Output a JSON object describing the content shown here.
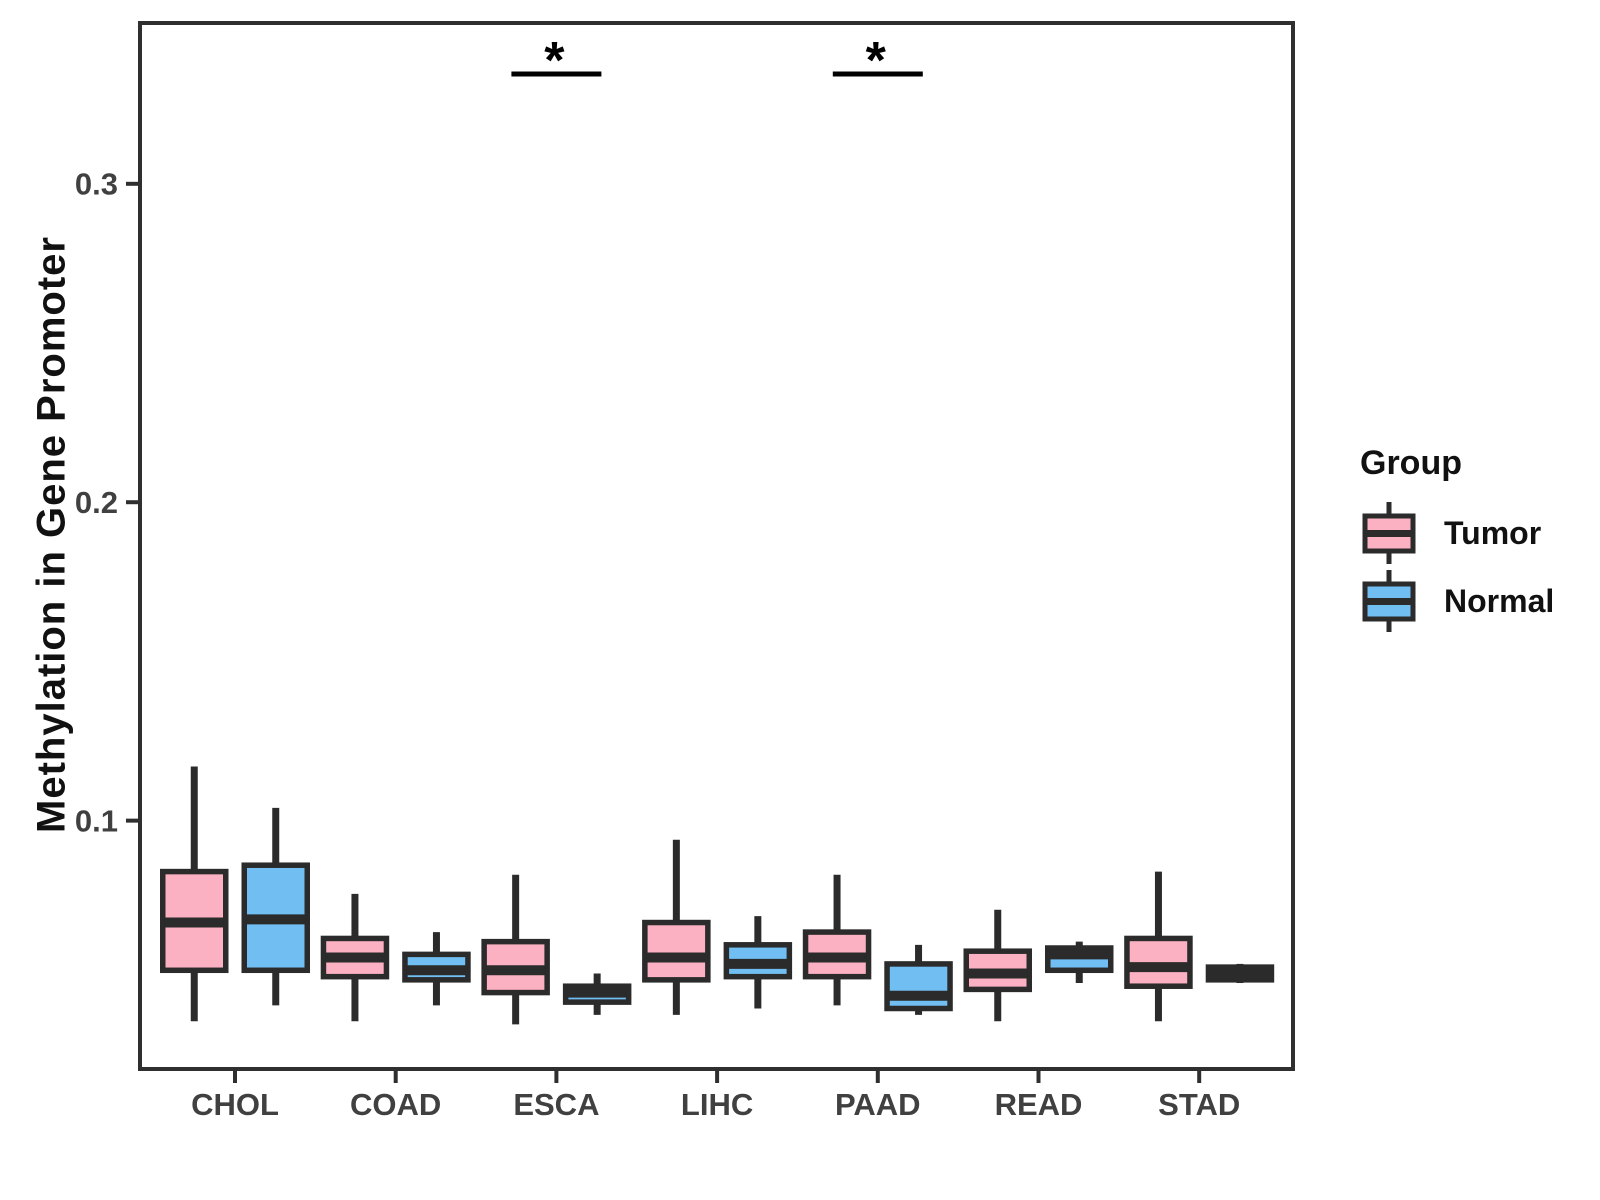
{
  "figure": {
    "background": "#FFFFFF",
    "colors": {
      "box_outline": "#2B2B2B",
      "panel_border": "#2F2F2F",
      "tick_text": "#404040",
      "title_text": "#111111",
      "tumor_fill": "#FCB1C3",
      "normal_fill": "#71BEF2"
    },
    "y_axis": {
      "title": "Methylation in Gene Promoter",
      "tick_labels": [
        "0.1",
        "0.2",
        "0.3"
      ]
    },
    "legend": {
      "title": "Group",
      "entries": [
        {
          "label": "Tumor",
          "color": "#FCB1C3"
        },
        {
          "label": "Normal",
          "color": "#71BEF2"
        }
      ]
    }
  },
  "chart_data": {
    "type": "boxplot-grouped",
    "title": "",
    "xlabel": "",
    "ylabel": "Methylation in Gene Promoter",
    "categories": [
      "CHOL",
      "COAD",
      "ESCA",
      "LIHC",
      "PAAD",
      "READ",
      "STAD"
    ],
    "groups": [
      "Tumor",
      "Normal"
    ],
    "ylim": [
      0.022,
      0.3505
    ],
    "yticks": [
      0.1,
      0.2,
      0.3
    ],
    "grid": false,
    "legend_position": "right",
    "series": [
      {
        "name": "Tumor",
        "color": "#FCB1C3",
        "boxes": [
          {
            "category": "CHOL",
            "low": 0.037,
            "q1": 0.053,
            "median": 0.068,
            "q3": 0.084,
            "high": 0.117
          },
          {
            "category": "COAD",
            "low": 0.037,
            "q1": 0.051,
            "median": 0.057,
            "q3": 0.063,
            "high": 0.077
          },
          {
            "category": "ESCA",
            "low": 0.036,
            "q1": 0.046,
            "median": 0.053,
            "q3": 0.062,
            "high": 0.083
          },
          {
            "category": "LIHC",
            "low": 0.039,
            "q1": 0.05,
            "median": 0.057,
            "q3": 0.068,
            "high": 0.094
          },
          {
            "category": "PAAD",
            "low": 0.042,
            "q1": 0.051,
            "median": 0.057,
            "q3": 0.065,
            "high": 0.083
          },
          {
            "category": "READ",
            "low": 0.037,
            "q1": 0.047,
            "median": 0.052,
            "q3": 0.059,
            "high": 0.072
          },
          {
            "category": "STAD",
            "low": 0.037,
            "q1": 0.048,
            "median": 0.054,
            "q3": 0.063,
            "high": 0.084
          }
        ]
      },
      {
        "name": "Normal",
        "color": "#71BEF2",
        "boxes": [
          {
            "category": "CHOL",
            "low": 0.042,
            "q1": 0.053,
            "median": 0.069,
            "q3": 0.086,
            "high": 0.104
          },
          {
            "category": "COAD",
            "low": 0.042,
            "q1": 0.05,
            "median": 0.053,
            "q3": 0.058,
            "high": 0.065
          },
          {
            "category": "ESCA",
            "low": 0.039,
            "q1": 0.043,
            "median": 0.046,
            "q3": 0.048,
            "high": 0.052
          },
          {
            "category": "LIHC",
            "low": 0.041,
            "q1": 0.051,
            "median": 0.055,
            "q3": 0.061,
            "high": 0.07
          },
          {
            "category": "PAAD",
            "low": 0.039,
            "q1": 0.041,
            "median": 0.045,
            "q3": 0.055,
            "high": 0.061
          },
          {
            "category": "READ",
            "low": 0.049,
            "q1": 0.053,
            "median": 0.058,
            "q3": 0.06,
            "high": 0.062
          },
          {
            "category": "STAD",
            "low": 0.049,
            "q1": 0.05,
            "median": 0.052,
            "q3": 0.054,
            "high": 0.055
          }
        ]
      }
    ],
    "significance": [
      {
        "category": "ESCA",
        "label": "*"
      },
      {
        "category": "PAAD",
        "label": "*"
      }
    ]
  }
}
